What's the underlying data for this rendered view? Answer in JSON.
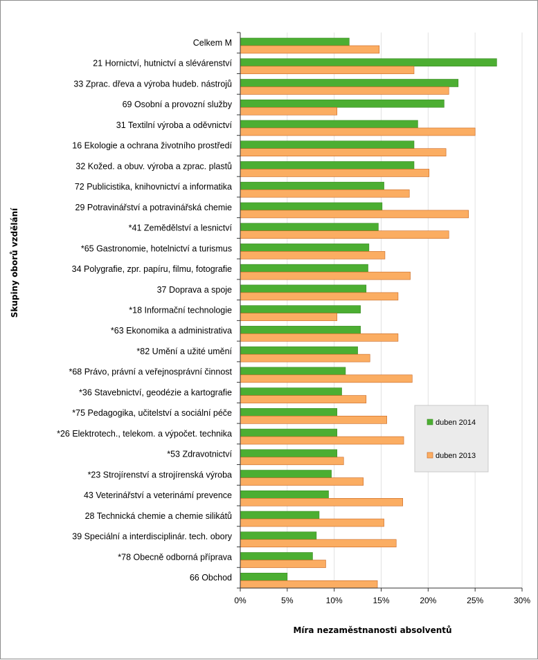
{
  "chart_data": {
    "type": "bar",
    "orientation": "horizontal",
    "xlabel": "Míra nezaměstnanosti absolventů",
    "ylabel": "Skupiny oborů vzdělání",
    "xlim": [
      0,
      0.3
    ],
    "x_ticks": [
      0,
      0.05,
      0.1,
      0.15,
      0.2,
      0.25,
      0.3
    ],
    "x_tick_labels": [
      "0%",
      "5%",
      "10%",
      "15%",
      "20%",
      "25%",
      "30%"
    ],
    "grid": "vertical",
    "legend_position": "right",
    "categories": [
      "Celkem M",
      "21 Hornictví, hutnictví a slévárenství",
      "33 Zprac. dřeva a výroba hudeb. nástrojů",
      "69 Osobní a provozní služby",
      "31 Textilní výroba a oděvnictví",
      "16 Ekologie a ochrana životního prostředí",
      "32 Kožed. a obuv. výroba a zprac. plastů",
      "72 Publicistika, knihovnictví a informatika",
      "29 Potravinářství a potravinářská chemie",
      "*41 Zemědělství a lesnictví",
      "*65 Gastronomie, hotelnictví a turismus",
      "34 Polygrafie, zpr. papíru, filmu, fotografie",
      "37 Doprava a spoje",
      "*18 Informační technologie",
      "*63 Ekonomika a administrativa",
      "*82 Umění a užité umění",
      "*68 Právo, právní a veřejnosprávní činnost",
      "*36 Stavebnictví, geodézie a kartografie",
      "*75 Pedagogika, učitelství a sociální péče",
      "*26 Elektrotech., telekom. a výpočet. technika",
      "*53 Zdravotnictví",
      "*23 Strojírenství a strojírenská výroba",
      "43 Veterinářství a veterinámí prevence",
      "28 Technická chemie a chemie silikátů",
      "39 Speciální a interdisciplinár. tech. obory",
      "*78 Obecně odborná příprava",
      "66 Obchod"
    ],
    "series": [
      {
        "name": "duben 2014",
        "color": "#4cae32",
        "values": [
          0.116,
          0.273,
          0.232,
          0.217,
          0.189,
          0.185,
          0.185,
          0.153,
          0.151,
          0.147,
          0.137,
          0.136,
          0.134,
          0.128,
          0.128,
          0.125,
          0.112,
          0.108,
          0.103,
          0.103,
          0.103,
          0.097,
          0.094,
          0.084,
          0.081,
          0.077,
          0.05
        ]
      },
      {
        "name": "duben 2013",
        "color": "#fbad62",
        "values": [
          0.148,
          0.185,
          0.222,
          0.103,
          0.25,
          0.219,
          0.201,
          0.18,
          0.243,
          0.222,
          0.154,
          0.181,
          0.168,
          0.103,
          0.168,
          0.138,
          0.183,
          0.134,
          0.156,
          0.174,
          0.11,
          0.131,
          0.173,
          0.153,
          0.166,
          0.091,
          0.146
        ]
      }
    ]
  }
}
